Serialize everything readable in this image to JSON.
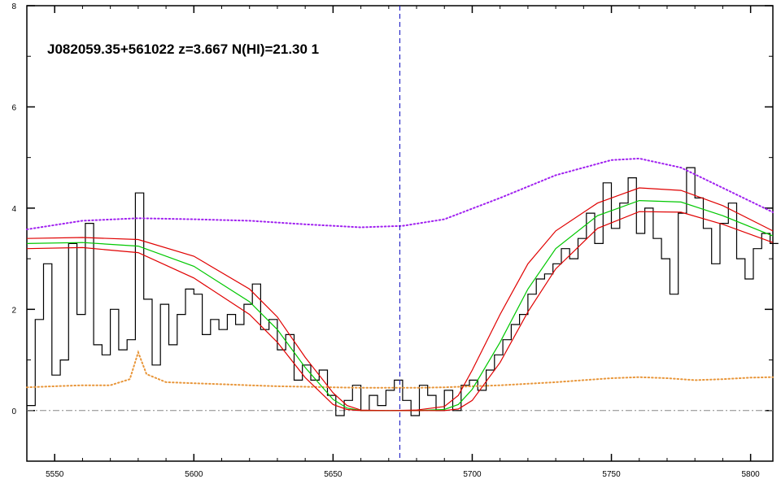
{
  "chart_data": {
    "type": "line",
    "title": "J082059.35+561022 z=3.667 N(HI)=21.30 1",
    "xlabel": "",
    "ylabel": "",
    "xlim": [
      5540,
      5808
    ],
    "ylim": [
      -1,
      8
    ],
    "x_ticks": [
      5550,
      5600,
      5650,
      5700,
      5750,
      5800
    ],
    "y_ticks": [
      0,
      2,
      4,
      6,
      8
    ],
    "grid": false,
    "absorber_center_x": 5674,
    "series": [
      {
        "role": "flux-spectrum",
        "color": "#000000",
        "style": "histogram",
        "x": [
          5540,
          5543,
          5546,
          5549,
          5552,
          5555,
          5558,
          5561,
          5564,
          5567,
          5570,
          5573,
          5576,
          5579,
          5582,
          5585,
          5588,
          5591,
          5594,
          5597,
          5600,
          5603,
          5606,
          5609,
          5612,
          5615,
          5618,
          5621,
          5624,
          5627,
          5630,
          5633,
          5636,
          5639,
          5642,
          5645,
          5648,
          5651,
          5654,
          5657,
          5660,
          5663,
          5666,
          5669,
          5672,
          5675,
          5678,
          5681,
          5684,
          5687,
          5690,
          5693,
          5696,
          5699,
          5702,
          5705,
          5708,
          5711,
          5714,
          5717,
          5720,
          5723,
          5726,
          5729,
          5732,
          5735,
          5738,
          5741,
          5744,
          5747,
          5750,
          5753,
          5756,
          5759,
          5762,
          5765,
          5768,
          5771,
          5774,
          5777,
          5780,
          5783,
          5786,
          5789,
          5792,
          5795,
          5798,
          5801,
          5804,
          5807
        ],
        "y": [
          0.1,
          1.8,
          2.9,
          0.7,
          1.0,
          3.3,
          1.9,
          3.7,
          1.3,
          1.1,
          2.0,
          1.2,
          1.4,
          4.3,
          2.2,
          0.9,
          2.1,
          1.3,
          1.9,
          2.4,
          2.3,
          1.5,
          1.8,
          1.6,
          1.9,
          1.7,
          2.1,
          2.5,
          1.6,
          1.8,
          1.2,
          1.5,
          0.6,
          0.9,
          0.6,
          0.8,
          0.3,
          -0.1,
          0.2,
          0.5,
          0.0,
          0.3,
          0.1,
          0.4,
          0.6,
          0.2,
          -0.1,
          0.5,
          0.3,
          0.0,
          0.4,
          0.0,
          0.5,
          0.6,
          0.4,
          0.8,
          1.1,
          1.4,
          1.7,
          1.9,
          2.3,
          2.6,
          2.7,
          2.9,
          3.2,
          3.0,
          3.4,
          3.9,
          3.3,
          4.5,
          3.6,
          4.1,
          4.6,
          3.5,
          4.0,
          3.4,
          3.0,
          2.3,
          3.9,
          4.8,
          4.2,
          3.6,
          2.9,
          3.7,
          4.1,
          3.0,
          2.6,
          3.2,
          3.5,
          3.3
        ]
      },
      {
        "role": "noise-spectrum",
        "color": "#e8963a",
        "style": "dotted",
        "x": [
          5540,
          5550,
          5560,
          5570,
          5577,
          5580,
          5583,
          5590,
          5600,
          5610,
          5620,
          5630,
          5640,
          5650,
          5660,
          5670,
          5680,
          5690,
          5700,
          5710,
          5720,
          5730,
          5740,
          5750,
          5760,
          5770,
          5780,
          5790,
          5800,
          5808
        ],
        "y": [
          0.46,
          0.48,
          0.5,
          0.5,
          0.62,
          1.15,
          0.72,
          0.56,
          0.54,
          0.52,
          0.5,
          0.48,
          0.47,
          0.46,
          0.45,
          0.45,
          0.45,
          0.46,
          0.48,
          0.5,
          0.53,
          0.56,
          0.6,
          0.64,
          0.66,
          0.64,
          0.6,
          0.62,
          0.65,
          0.66
        ]
      },
      {
        "role": "continuum",
        "color": "#a020f0",
        "style": "dotted",
        "x": [
          5540,
          5560,
          5580,
          5600,
          5620,
          5640,
          5660,
          5675,
          5690,
          5710,
          5730,
          5750,
          5760,
          5775,
          5790,
          5808
        ],
        "y": [
          3.58,
          3.75,
          3.8,
          3.78,
          3.75,
          3.68,
          3.62,
          3.65,
          3.78,
          4.2,
          4.65,
          4.95,
          4.98,
          4.8,
          4.4,
          3.92
        ]
      },
      {
        "role": "dla-profile-upper",
        "color": "#e00000",
        "style": "solid",
        "x": [
          5540,
          5560,
          5580,
          5600,
          5620,
          5630,
          5640,
          5650,
          5655,
          5660,
          5670,
          5680,
          5690,
          5695,
          5700,
          5710,
          5720,
          5730,
          5745,
          5760,
          5775,
          5790,
          5808
        ],
        "y": [
          3.4,
          3.42,
          3.38,
          3.05,
          2.4,
          1.85,
          1.05,
          0.35,
          0.1,
          0.01,
          0.0,
          0.01,
          0.08,
          0.3,
          0.8,
          1.9,
          2.9,
          3.55,
          4.1,
          4.4,
          4.35,
          4.05,
          3.55
        ]
      },
      {
        "role": "dla-profile-best",
        "color": "#00c800",
        "style": "solid",
        "x": [
          5540,
          5560,
          5580,
          5600,
          5620,
          5630,
          5640,
          5650,
          5655,
          5660,
          5670,
          5680,
          5690,
          5695,
          5700,
          5710,
          5720,
          5730,
          5745,
          5760,
          5775,
          5790,
          5808
        ],
        "y": [
          3.3,
          3.32,
          3.25,
          2.85,
          2.15,
          1.6,
          0.85,
          0.22,
          0.05,
          0.0,
          0.0,
          0.0,
          0.02,
          0.12,
          0.42,
          1.35,
          2.4,
          3.2,
          3.85,
          4.15,
          4.12,
          3.85,
          3.45
        ]
      },
      {
        "role": "dla-profile-lower",
        "color": "#e00000",
        "style": "solid",
        "x": [
          5540,
          5560,
          5580,
          5600,
          5620,
          5630,
          5640,
          5650,
          5655,
          5660,
          5670,
          5680,
          5690,
          5695,
          5700,
          5710,
          5720,
          5730,
          5745,
          5760,
          5775,
          5790,
          5808
        ],
        "y": [
          3.2,
          3.22,
          3.12,
          2.62,
          1.9,
          1.35,
          0.65,
          0.12,
          0.02,
          0.0,
          0.0,
          0.0,
          0.0,
          0.03,
          0.2,
          0.95,
          1.95,
          2.8,
          3.6,
          3.93,
          3.92,
          3.68,
          3.32
        ]
      }
    ]
  }
}
